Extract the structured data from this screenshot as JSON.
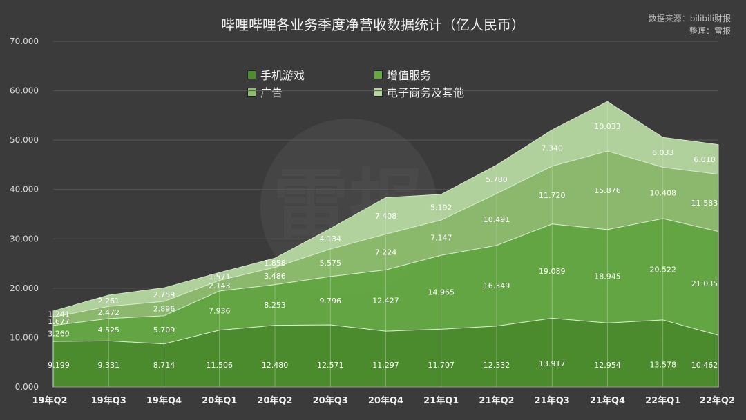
{
  "header": {
    "title": "哔哩哔哩各业务季度净营收数据统计（亿人民币）",
    "source": "数据来源：bilibili财报",
    "editor": "整理：雷报"
  },
  "watermark": {
    "logo_text": "雷报"
  },
  "colors": {
    "background": "#3b3b3b",
    "games": "#4c8e2e",
    "vas": "#66a944",
    "ads": "#8ebd6e",
    "ecommerce": "#b5d6a0",
    "gridline": "#595959",
    "text": "#f0f0f0"
  },
  "chart_data": {
    "type": "area",
    "stacked": true,
    "title": "哔哩哔哩各业务季度净营收数据统计（亿人民币）",
    "categories": [
      "19年Q2",
      "19年Q3",
      "19年Q4",
      "20年Q1",
      "20年Q2",
      "20年Q3",
      "20年Q4",
      "21年Q1",
      "21年Q2",
      "21年Q3",
      "21年Q4",
      "22年Q1",
      "22年Q2"
    ],
    "ylim": [
      0,
      70
    ],
    "yticks": [
      "0.000",
      "10.000",
      "20.000",
      "30.000",
      "40.000",
      "50.000",
      "60.000",
      "70.000"
    ],
    "grid": true,
    "legend_position": "top-center",
    "series": [
      {
        "name": "手机游戏",
        "values": [
          9.199,
          9.331,
          8.714,
          11.506,
          12.48,
          12.571,
          11.297,
          11.707,
          12.332,
          13.917,
          12.954,
          13.578,
          10.462
        ],
        "labels": [
          "9.199",
          "9.331",
          "8.714",
          "11.506",
          "12.480",
          "12.571",
          "11.297",
          "11.707",
          "12.332",
          "13.917",
          "12.954",
          "13.578",
          "10.462"
        ]
      },
      {
        "name": "增值服务",
        "values": [
          3.26,
          4.525,
          5.709,
          7.936,
          8.253,
          9.796,
          12.427,
          14.965,
          16.349,
          19.089,
          18.945,
          20.522,
          21.035
        ],
        "labels": [
          "3.260",
          "4.525",
          "5.709",
          "7.936",
          "8.253",
          "9.796",
          "12.427",
          "14.965",
          "16.349",
          "19.089",
          "18.945",
          "20.522",
          "21.035"
        ]
      },
      {
        "name": "广告",
        "values": [
          1.677,
          2.472,
          2.896,
          2.143,
          3.486,
          5.575,
          7.224,
          7.147,
          10.491,
          11.72,
          15.876,
          10.408,
          11.583
        ],
        "labels": [
          "1.677",
          "2.472",
          "2.896",
          "2.143",
          "3.486",
          "5.575",
          "7.224",
          "7.147",
          "10.491",
          "11.720",
          "15.876",
          "10.408",
          "11.583"
        ]
      },
      {
        "name": "电子商务及其他",
        "values": [
          1.241,
          2.261,
          2.759,
          1.571,
          1.858,
          4.134,
          7.408,
          5.192,
          5.78,
          7.34,
          10.033,
          6.033,
          6.01
        ],
        "labels": [
          "1.241",
          "2.261",
          "2.759",
          "1.571",
          "1.858",
          "4.134",
          "7.408",
          "5.192",
          "5.780",
          "7.340",
          "10.033",
          "6.033",
          "6.010"
        ]
      }
    ]
  }
}
